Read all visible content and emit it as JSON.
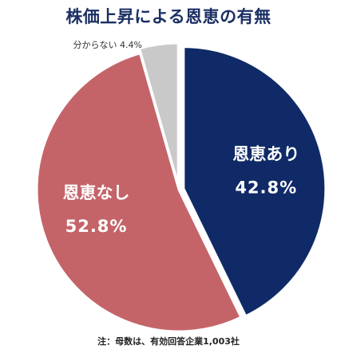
{
  "chart_data": {
    "type": "pie",
    "title": "株価上昇による恩恵の有無",
    "start": "12 o'clock",
    "direction": "clockwise",
    "slices": [
      {
        "label": "恩恵あり",
        "value": 42.8,
        "value_label": "42.8%",
        "color": "#0f2a66"
      },
      {
        "label": "恩恵なし",
        "value": 52.8,
        "value_label": "52.8%",
        "color": "#c46469"
      },
      {
        "label": "分からない",
        "value": 4.4,
        "value_label": "4.4%",
        "color": "#c9c9c9"
      }
    ],
    "note": "注：母数は、有効回答企業1,003社"
  }
}
